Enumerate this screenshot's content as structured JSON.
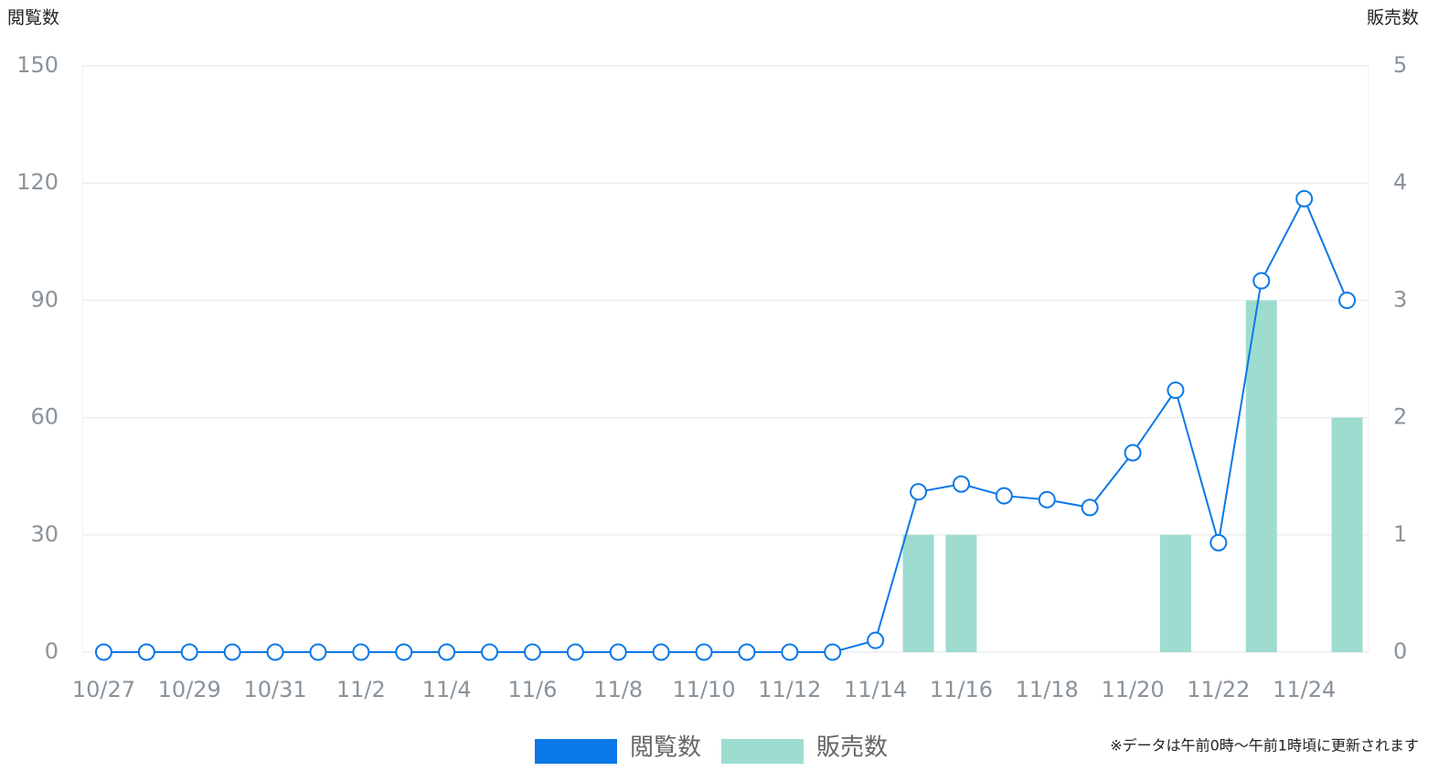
{
  "chart_data": {
    "type": "combo",
    "y_label": "閲覧数",
    "y2_label": "販売数",
    "note": "※データは午前0時～午前1時頃に更新されます",
    "categories": [
      "10/27",
      null,
      "10/29",
      null,
      "10/31",
      null,
      "11/2",
      null,
      "11/4",
      null,
      "11/6",
      null,
      "11/8",
      null,
      "11/10",
      null,
      "11/12",
      null,
      "11/14",
      null,
      "11/16",
      null,
      "11/18",
      null,
      "11/20",
      null,
      "11/22",
      null,
      "11/24",
      null
    ],
    "series": [
      {
        "name": "閲覧数",
        "type": "line",
        "color": "#0a78e6",
        "values": [
          0,
          0,
          0,
          0,
          0,
          0,
          0,
          0,
          0,
          0,
          0,
          0,
          0,
          0,
          0,
          0,
          0,
          0,
          3,
          41,
          43,
          40,
          39,
          37,
          51,
          67,
          28,
          95,
          116,
          90
        ]
      },
      {
        "name": "販売数",
        "type": "bar",
        "axis": "y2",
        "color": "#9edcd0",
        "values": [
          0,
          0,
          0,
          0,
          0,
          0,
          0,
          0,
          0,
          0,
          0,
          0,
          0,
          0,
          0,
          0,
          0,
          0,
          0,
          1,
          1,
          0,
          0,
          0,
          0,
          1,
          0,
          3,
          0,
          2
        ]
      }
    ],
    "ylim": [
      0,
      150
    ],
    "yticks": [
      0,
      30,
      60,
      90,
      120,
      150
    ],
    "y2lim": [
      0,
      5
    ],
    "y2ticks": [
      0,
      1,
      2,
      3,
      4,
      5
    ],
    "grid": true
  }
}
